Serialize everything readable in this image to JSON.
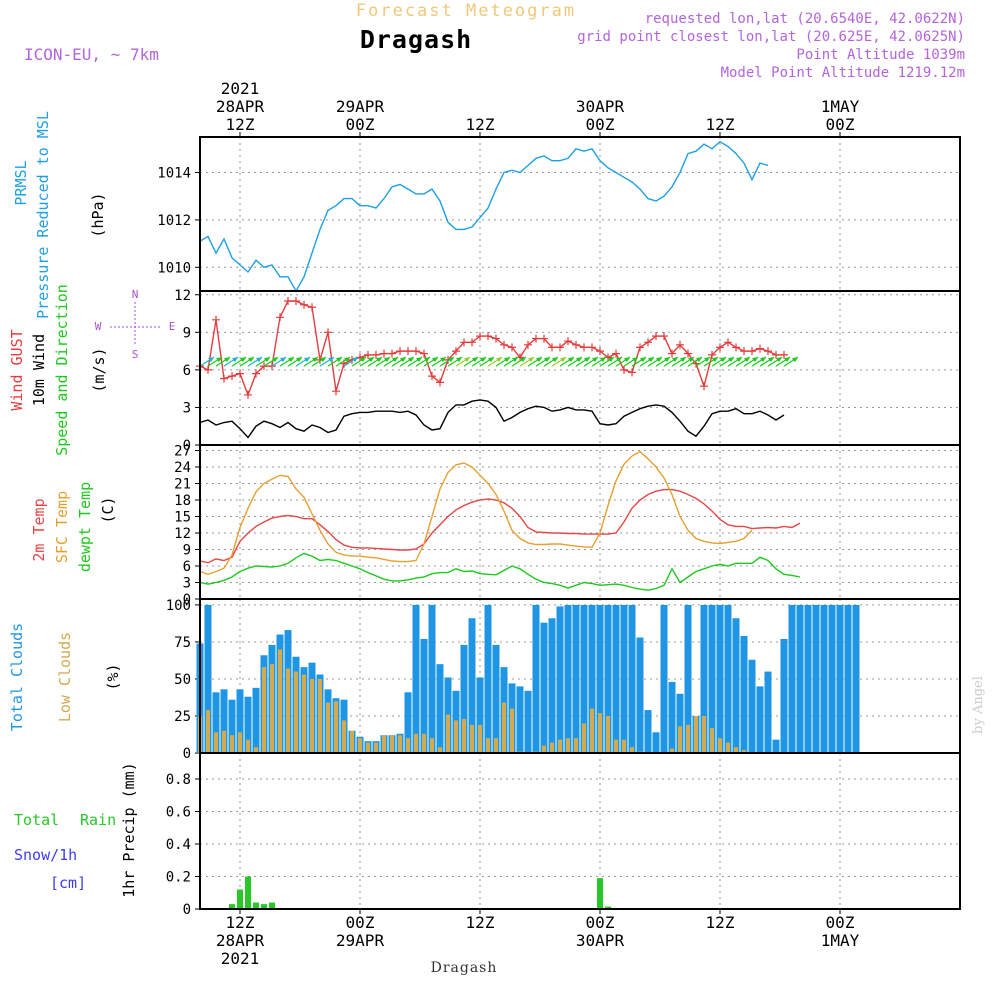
{
  "header": {
    "super_title": "Forecast Meteogram",
    "station": "Dragash",
    "model": "ICON-EU, ~ 7km",
    "requested": "requested lon,lat (20.6540E, 42.0622N)",
    "grid_point": "grid point closest lon,lat (20.625E, 42.0625N)",
    "point_alt": "Point Altitude 1039m",
    "model_alt": "Model Point Altitude 1219.12m",
    "footer_station": "Dragash",
    "watermark": "by Angel"
  },
  "time_axis": {
    "start_hour": -5,
    "end_hour": 90,
    "top_ticks": [
      {
        "hour": 0,
        "lines": [
          "2021",
          "28APR",
          "12Z"
        ]
      },
      {
        "hour": 15,
        "lines": [
          "29APR",
          "00Z"
        ]
      },
      {
        "hour": 30,
        "lines": [
          "12Z"
        ]
      },
      {
        "hour": 45,
        "lines": [
          "30APR",
          "00Z"
        ]
      },
      {
        "hour": 60,
        "lines": [
          "12Z"
        ]
      },
      {
        "hour": 75,
        "lines": [
          "1MAY",
          "00Z"
        ]
      }
    ],
    "bottom_ticks": [
      {
        "hour": 0,
        "lines": [
          "12Z",
          "28APR",
          "2021"
        ]
      },
      {
        "hour": 15,
        "lines": [
          "00Z",
          "29APR"
        ]
      },
      {
        "hour": 30,
        "lines": [
          "12Z"
        ]
      },
      {
        "hour": 45,
        "lines": [
          "00Z",
          "30APR"
        ]
      },
      {
        "hour": 60,
        "lines": [
          "12Z"
        ]
      },
      {
        "hour": 75,
        "lines": [
          "00Z",
          "1MAY"
        ]
      }
    ]
  },
  "colors": {
    "pressure": "#1ea0e6",
    "gust": "#e63c3c",
    "wind": "#000000",
    "dir": "#1ec81e",
    "t2m": "#e64646",
    "sfc": "#e6a032",
    "dew": "#1ec81e",
    "total_clouds": "#1e96e6",
    "low_clouds": "#d2aa50",
    "rain": "#28c828",
    "snow": "#3c3cf0",
    "compass": "#aa50d2",
    "header_purple": "#b464dc",
    "super_title": "#f0c87a"
  },
  "chart_data": [
    {
      "type": "line",
      "id": "pressure",
      "title": "PRMSL Pressure Reduced to MSL",
      "label_lines": [
        "PRMSL",
        "Pressure Reduced to MSL"
      ],
      "unit": "(hPa)",
      "ylim": [
        1009.0,
        1015.5
      ],
      "yticks": [
        1010,
        1012,
        1014
      ],
      "series": [
        {
          "name": "PRMSL",
          "x_start": -5,
          "x_step": 1,
          "values": [
            1011.1,
            1011.3,
            1010.6,
            1011.2,
            1010.4,
            1010.1,
            1009.8,
            1010.3,
            1010.0,
            1010.1,
            1009.6,
            1009.6,
            1009.0,
            1009.6,
            1010.6,
            1011.6,
            1012.4,
            1012.6,
            1012.9,
            1012.9,
            1012.6,
            1012.6,
            1012.5,
            1012.9,
            1013.4,
            1013.5,
            1013.3,
            1013.1,
            1013.1,
            1013.3,
            1012.8,
            1011.9,
            1011.6,
            1011.6,
            1011.7,
            1012.1,
            1012.5,
            1013.3,
            1014.0,
            1014.1,
            1014.0,
            1014.3,
            1014.6,
            1014.7,
            1014.5,
            1014.5,
            1014.6,
            1015.0,
            1014.9,
            1015.0,
            1014.5,
            1014.2,
            1014.0,
            1013.8,
            1013.6,
            1013.3,
            1012.9,
            1012.8,
            1013.0,
            1013.4,
            1014.0,
            1014.8,
            1014.9,
            1015.2,
            1015.0,
            1015.3,
            1015.1,
            1014.8,
            1014.4,
            1013.7,
            1014.4,
            1014.3
          ]
        }
      ]
    },
    {
      "type": "line",
      "id": "wind",
      "title": "Wind GUST / 10m Wind Speed and Direction",
      "label_gust": "Wind GUST",
      "label_wind": "10m Wind",
      "label_dir": "Speed and Direction",
      "unit": "(m/s)",
      "compass": {
        "n": "N",
        "s": "S",
        "e": "E",
        "w": "W"
      },
      "ylim": [
        0,
        12.3
      ],
      "yticks": [
        0,
        3,
        6,
        9,
        12
      ],
      "series": [
        {
          "name": "Wind GUST",
          "x_start": -5,
          "x_step": 1,
          "values": [
            6.3,
            6.0,
            10.0,
            5.3,
            5.5,
            5.7,
            4.0,
            5.7,
            6.3,
            6.3,
            10.2,
            11.5,
            11.5,
            11.2,
            11.0,
            6.8,
            9.0,
            4.3,
            6.5,
            6.8,
            7.0,
            7.2,
            7.2,
            7.3,
            7.3,
            7.5,
            7.5,
            7.5,
            7.3,
            5.5,
            5.0,
            6.8,
            7.5,
            8.2,
            8.2,
            8.7,
            8.7,
            8.5,
            8.0,
            7.8,
            7.0,
            8.0,
            8.5,
            8.5,
            7.8,
            7.8,
            8.3,
            8.0,
            7.8,
            7.8,
            7.5,
            7.0,
            7.3,
            6.0,
            5.8,
            7.8,
            8.2,
            8.7,
            8.7,
            7.3,
            8.0,
            7.3,
            6.5,
            4.7,
            7.2,
            7.8,
            8.2,
            7.8,
            7.5,
            7.5,
            7.7,
            7.5,
            7.2,
            7.2
          ]
        },
        {
          "name": "10m Wind",
          "x_start": -5,
          "x_step": 1,
          "values": [
            1.8,
            2.0,
            1.6,
            1.8,
            1.9,
            1.3,
            0.6,
            1.5,
            1.9,
            1.7,
            1.4,
            1.8,
            1.3,
            1.1,
            1.6,
            1.4,
            1.0,
            1.2,
            2.3,
            2.5,
            2.6,
            2.6,
            2.7,
            2.7,
            2.7,
            2.6,
            2.7,
            2.4,
            1.6,
            1.2,
            1.3,
            2.6,
            3.2,
            3.2,
            3.5,
            3.6,
            3.5,
            3.0,
            1.9,
            2.2,
            2.6,
            2.9,
            3.1,
            3.0,
            2.7,
            2.8,
            3.0,
            2.8,
            2.8,
            2.7,
            1.7,
            1.6,
            1.7,
            2.3,
            2.6,
            2.9,
            3.1,
            3.2,
            3.1,
            2.6,
            1.9,
            1.1,
            0.7,
            1.5,
            2.5,
            2.7,
            2.7,
            2.9,
            2.5,
            2.5,
            2.7,
            2.4,
            2.0,
            2.4
          ]
        }
      ]
    },
    {
      "type": "line",
      "id": "temp",
      "title": "2m Temp / SFC Temp / dewpt Temp",
      "label_t2m": "2m Temp",
      "label_sfc": "SFC Temp",
      "label_dew": "dewpt Temp",
      "unit": "(C)",
      "ylim": [
        0,
        28
      ],
      "yticks": [
        0,
        3,
        6,
        9,
        12,
        15,
        18,
        21,
        24,
        27
      ],
      "series": [
        {
          "name": "2m Temp",
          "x_start": -5,
          "x_step": 1,
          "values": [
            6.9,
            6.6,
            7.3,
            7.0,
            7.6,
            10.5,
            12.0,
            13.2,
            14.0,
            14.7,
            15.0,
            15.2,
            15.0,
            14.6,
            14.6,
            13.5,
            12.3,
            10.8,
            9.8,
            9.4,
            9.3,
            9.3,
            9.2,
            9.1,
            9.0,
            8.9,
            8.9,
            9.1,
            10.0,
            12.0,
            13.5,
            15.0,
            16.2,
            17.0,
            17.6,
            18.0,
            18.2,
            18.0,
            17.5,
            16.5,
            15.0,
            13.0,
            12.2,
            12.1,
            12.0,
            12.0,
            11.9,
            11.9,
            11.8,
            11.8,
            11.8,
            11.8,
            12.0,
            14.0,
            16.5,
            18.0,
            19.0,
            19.6,
            19.9,
            19.9,
            19.6,
            19.0,
            18.3,
            17.3,
            16.0,
            14.5,
            13.5,
            13.2,
            13.2,
            12.8,
            12.9,
            13.0,
            12.9,
            13.2,
            13.0,
            13.8
          ]
        },
        {
          "name": "SFC Temp",
          "x_start": -5,
          "x_step": 1,
          "values": [
            5.0,
            4.5,
            5.0,
            5.6,
            8.0,
            13.0,
            16.5,
            19.5,
            21.0,
            21.8,
            22.5,
            22.3,
            20.0,
            18.5,
            15.5,
            12.5,
            10.0,
            8.5,
            8.0,
            7.8,
            7.8,
            7.6,
            7.5,
            7.2,
            6.9,
            6.8,
            6.8,
            7.0,
            10.0,
            15.0,
            20.0,
            23.0,
            24.4,
            24.7,
            24.0,
            22.5,
            21.0,
            19.0,
            16.0,
            12.5,
            11.0,
            10.2,
            9.9,
            9.9,
            10.0,
            10.0,
            9.8,
            9.6,
            9.5,
            9.4,
            12.0,
            17.0,
            21.5,
            24.5,
            26.0,
            26.8,
            25.5,
            24.0,
            22.0,
            19.0,
            15.0,
            12.5,
            11.0,
            10.5,
            10.2,
            10.1,
            10.3,
            10.5,
            11.0,
            12.5
          ]
        },
        {
          "name": "dewpt Temp",
          "x_start": -5,
          "x_step": 1,
          "values": [
            3.0,
            2.7,
            3.0,
            3.4,
            4.0,
            5.0,
            5.6,
            6.0,
            5.9,
            5.8,
            6.0,
            6.5,
            7.5,
            8.3,
            7.8,
            7.0,
            7.2,
            7.0,
            6.5,
            6.0,
            5.5,
            4.8,
            4.2,
            3.6,
            3.3,
            3.3,
            3.5,
            3.8,
            4.0,
            4.6,
            4.8,
            4.8,
            5.5,
            5.0,
            5.1,
            4.6,
            4.5,
            4.4,
            5.2,
            6.0,
            5.5,
            4.5,
            3.6,
            3.0,
            2.8,
            2.5,
            2.0,
            2.5,
            3.0,
            2.8,
            2.5,
            2.6,
            2.7,
            2.5,
            2.1,
            1.8,
            1.6,
            1.9,
            2.5,
            5.5,
            3.0,
            4.0,
            5.0,
            5.5,
            6.0,
            6.3,
            6.0,
            6.5,
            6.5,
            6.5,
            7.6,
            7.0,
            5.5,
            4.5,
            4.3,
            4.0
          ]
        }
      ]
    },
    {
      "type": "bar",
      "id": "clouds",
      "title": "Total Clouds / Low Clouds",
      "label_total": "Total Clouds",
      "label_low": "Low Clouds",
      "unit": "(%)",
      "ylim": [
        0,
        104
      ],
      "yticks": [
        0,
        25,
        50,
        75,
        100
      ],
      "series": [
        {
          "name": "Total Clouds",
          "x_start": -5,
          "x_step": 1,
          "values": [
            74,
            100,
            41,
            43,
            36,
            43,
            38,
            44,
            66,
            73,
            80,
            83,
            65,
            58,
            61,
            53,
            43,
            37,
            36,
            15,
            11,
            8,
            8,
            12,
            12,
            13,
            41,
            100,
            77,
            100,
            60,
            51,
            42,
            73,
            91,
            51,
            100,
            73,
            58,
            47,
            45,
            42,
            100,
            88,
            91,
            99,
            100,
            100,
            100,
            100,
            100,
            100,
            100,
            100,
            100,
            78,
            29,
            14,
            100,
            48,
            40,
            100,
            25,
            100,
            100,
            100,
            100,
            91,
            79,
            63,
            45,
            55,
            9,
            77,
            100,
            100,
            100,
            100,
            100,
            100,
            100,
            100,
            100
          ]
        },
        {
          "name": "Low Clouds",
          "x_start": -5,
          "x_step": 1,
          "values": [
            25,
            29,
            14,
            15,
            12,
            14,
            9,
            4,
            58,
            60,
            70,
            57,
            55,
            53,
            50,
            50,
            34,
            35,
            22,
            15,
            10,
            7,
            7,
            12,
            12,
            12,
            10,
            13,
            13,
            10,
            4,
            26,
            22,
            23,
            19,
            19,
            10,
            10,
            34,
            30,
            1,
            0,
            1,
            5,
            7,
            9,
            10,
            10,
            20,
            30,
            27,
            25,
            9,
            9,
            4,
            1,
            0,
            0,
            0,
            3,
            18,
            19,
            25,
            25,
            17,
            10,
            7,
            4,
            2,
            0,
            0,
            0,
            0,
            0,
            0,
            0,
            0,
            0,
            0,
            0,
            0,
            0
          ]
        }
      ]
    },
    {
      "type": "bar",
      "id": "precip",
      "title": "1hr Precip (mm)",
      "label_rain_a": "Total",
      "label_rain_b": "Rain",
      "label_snow": "Snow/1h",
      "label_snow_unit": "[cm]",
      "unit": "1hr Precip (mm)",
      "ylim": [
        0,
        0.96
      ],
      "yticks": [
        0,
        0.2,
        0.4,
        0.6,
        0.8
      ],
      "ytick_labels": [
        "0",
        "0.2",
        "0.4",
        "0.6",
        "0.8"
      ],
      "series": [
        {
          "name": "Total Rain",
          "points": [
            [
              -4,
              0.005
            ],
            [
              -3,
              0.005
            ],
            [
              -1,
              0.005
            ],
            [
              -2,
              0.003
            ],
            [
              -1.5,
              0.003
            ],
            [
              -1,
              0.03
            ],
            [
              0,
              0.12
            ],
            [
              1,
              0.2
            ],
            [
              2,
              0.04
            ],
            [
              3,
              0.03
            ],
            [
              4,
              0.04
            ],
            [
              45,
              0.19
            ],
            [
              46,
              0.015
            ]
          ]
        },
        {
          "name": "Snow/1h",
          "points": []
        }
      ]
    }
  ]
}
